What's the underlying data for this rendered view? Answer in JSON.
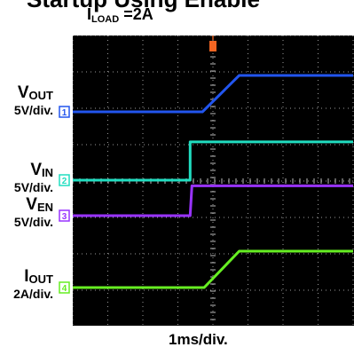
{
  "header": {
    "title_fragment": "Startup Using Enable",
    "load_label": {
      "symbol": "I",
      "subscript": "LOAD",
      "value": " =2A"
    }
  },
  "channels": [
    {
      "symbol": "V",
      "subscript": "OUT",
      "scale": "5V/div.",
      "marker": "1",
      "color": "#2255ee"
    },
    {
      "symbol": "V",
      "subscript": "IN",
      "scale": "5V/div.",
      "marker": "2",
      "color": "#20ddc0"
    },
    {
      "symbol": "V",
      "subscript": "EN",
      "scale": "5V/div.",
      "marker": "3",
      "color": "#9933ff"
    },
    {
      "symbol": "I",
      "subscript": "OUT",
      "scale": "2A/div.",
      "marker": "4",
      "color": "#66ee22"
    }
  ],
  "trigger_marker": "T",
  "x_axis_label": "1ms/div.",
  "chart_data": {
    "type": "line",
    "title": "",
    "xlabel": "1ms/div.",
    "ylabel": "",
    "x_unit": "ms",
    "xlim": [
      -4,
      4
    ],
    "grid": true,
    "series": [
      {
        "name": "VOUT",
        "channel": 1,
        "color": "#2255ee",
        "scale": "5V/div.",
        "offset_div": 6,
        "points": [
          [
            -4,
            0
          ],
          [
            -0.3,
            0
          ],
          [
            0.75,
            1
          ],
          [
            4,
            1
          ]
        ]
      },
      {
        "name": "VIN",
        "channel": 2,
        "color": "#20ddc0",
        "scale": "5V/div.",
        "offset_div": 4,
        "points": [
          [
            -4,
            0
          ],
          [
            -0.65,
            0
          ],
          [
            -0.65,
            1.05
          ],
          [
            4,
            1.05
          ]
        ]
      },
      {
        "name": "VEN",
        "channel": 3,
        "color": "#9933ff",
        "scale": "5V/div.",
        "offset_div": 3,
        "points": [
          [
            -4,
            0
          ],
          [
            -0.65,
            0
          ],
          [
            -0.6,
            0.82
          ],
          [
            4,
            0.82
          ]
        ]
      },
      {
        "name": "IOUT",
        "channel": 4,
        "color": "#66ee22",
        "scale": "2A/div.",
        "offset_div": 1,
        "points": [
          [
            -4,
            0
          ],
          [
            -0.25,
            0
          ],
          [
            0.75,
            1
          ],
          [
            4,
            1
          ]
        ]
      }
    ],
    "trigger_x": 0
  }
}
